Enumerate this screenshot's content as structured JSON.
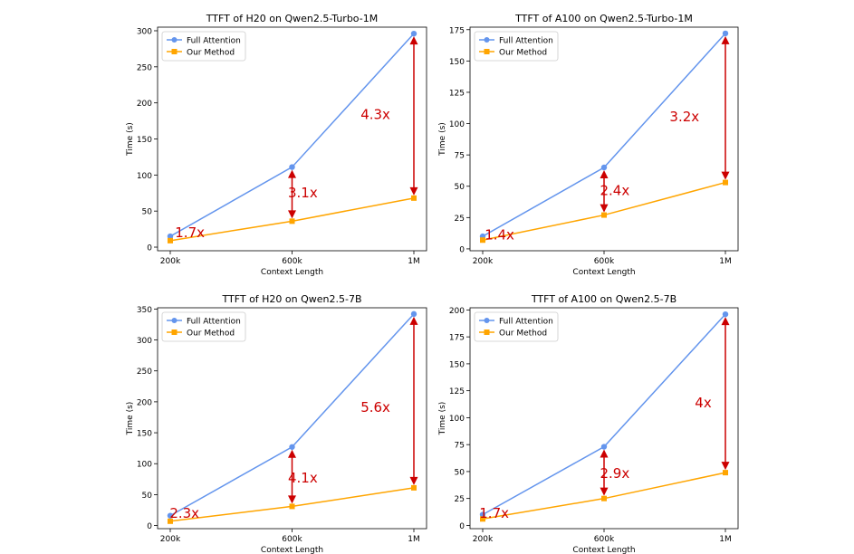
{
  "chart_data": [
    {
      "type": "line",
      "title": "TTFT of H20 on Qwen2.5-Turbo-1M",
      "xlabel": "Context Length",
      "ylabel": "Time (s)",
      "categories": [
        "200k",
        "600k",
        "1M"
      ],
      "ylim": [
        -5,
        305
      ],
      "yticks": [
        0,
        50,
        100,
        150,
        200,
        250,
        300
      ],
      "series": [
        {
          "name": "Full Attention",
          "values": [
            15,
            111,
            296
          ],
          "color": "#6495ed",
          "marker": "circle"
        },
        {
          "name": "Our Method",
          "values": [
            9,
            36,
            68
          ],
          "color": "#ffa500",
          "marker": "square"
        }
      ],
      "speedups": [
        "1.7x",
        "3.1x",
        "4.3x"
      ],
      "legend": "top-left",
      "annotation_color": "#cc0000"
    },
    {
      "type": "line",
      "title": "TTFT of A100 on Qwen2.5-Turbo-1M",
      "xlabel": "Context Length",
      "ylabel": "Time (s)",
      "categories": [
        "200k",
        "600k",
        "1M"
      ],
      "ylim": [
        -1.5,
        177
      ],
      "yticks": [
        0,
        25,
        50,
        75,
        100,
        125,
        150,
        175
      ],
      "series": [
        {
          "name": "Full Attention",
          "values": [
            10,
            65,
            172
          ],
          "color": "#6495ed",
          "marker": "circle"
        },
        {
          "name": "Our Method",
          "values": [
            7,
            27,
            53
          ],
          "color": "#ffa500",
          "marker": "square"
        }
      ],
      "speedups": [
        "1.4x",
        "2.4x",
        "3.2x"
      ],
      "legend": "top-left",
      "annotation_color": "#cc0000"
    },
    {
      "type": "line",
      "title": "TTFT of H20 on Qwen2.5-7B",
      "xlabel": "Context Length",
      "ylabel": "Time (s)",
      "categories": [
        "200k",
        "600k",
        "1M"
      ],
      "ylim": [
        -5,
        352
      ],
      "yticks": [
        0,
        50,
        100,
        150,
        200,
        250,
        300,
        350
      ],
      "series": [
        {
          "name": "Full Attention",
          "values": [
            16,
            127,
            342
          ],
          "color": "#6495ed",
          "marker": "circle"
        },
        {
          "name": "Our Method",
          "values": [
            7,
            31,
            61
          ],
          "color": "#ffa500",
          "marker": "square"
        }
      ],
      "speedups": [
        "2.3x",
        "4.1x",
        "5.6x"
      ],
      "legend": "top-left",
      "annotation_color": "#cc0000"
    },
    {
      "type": "line",
      "title": "TTFT of A100 on Qwen2.5-7B",
      "xlabel": "Context Length",
      "ylabel": "Time (s)",
      "categories": [
        "200k",
        "600k",
        "1M"
      ],
      "ylim": [
        -3,
        202
      ],
      "yticks": [
        0,
        25,
        50,
        75,
        100,
        125,
        150,
        175,
        200
      ],
      "series": [
        {
          "name": "Full Attention",
          "values": [
            10,
            73,
            196
          ],
          "color": "#6495ed",
          "marker": "circle"
        },
        {
          "name": "Our Method",
          "values": [
            6,
            25,
            49
          ],
          "color": "#ffa500",
          "marker": "square"
        }
      ],
      "speedups": [
        "1.7x",
        "2.9x",
        "4x"
      ],
      "legend": "top-left",
      "annotation_color": "#cc0000"
    }
  ]
}
